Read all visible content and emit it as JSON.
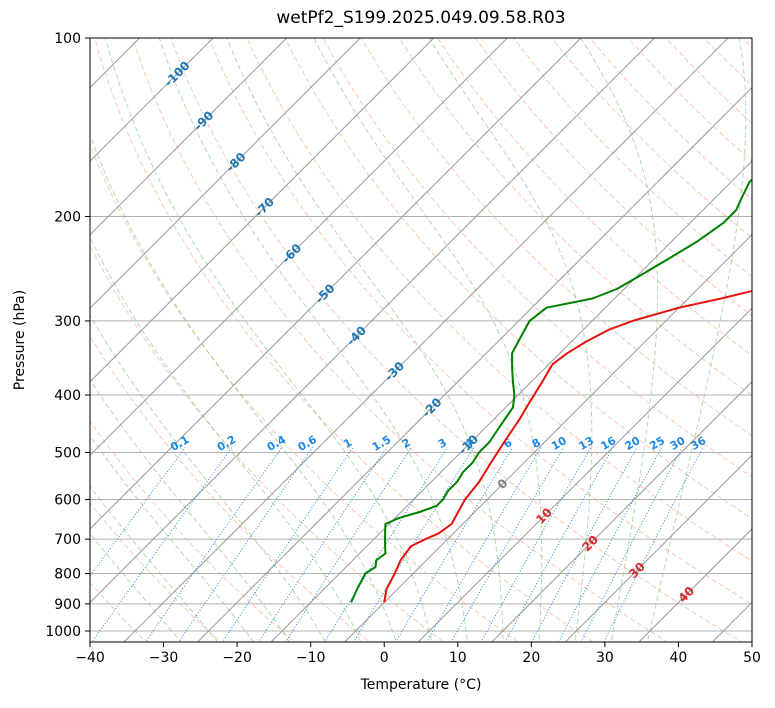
{
  "chart_data": {
    "type": "line",
    "title": "wetPf2_S199.2025.049.09.58.R03",
    "xlabel": "Temperature (°C)",
    "ylabel": "Pressure (hPa)",
    "xlim": [
      -40,
      50
    ],
    "ylim": [
      1050,
      100
    ],
    "y_scale": "log",
    "grid": true,
    "x_ticks": [
      -40,
      -30,
      -20,
      -10,
      0,
      10,
      20,
      30,
      40,
      50
    ],
    "y_ticks": [
      100,
      200,
      300,
      400,
      500,
      600,
      700,
      800,
      900,
      1000
    ],
    "series": [
      {
        "color": "#e8110f",
        "points": [
          [
            0.0,
            895
          ],
          [
            -1.5,
            850
          ],
          [
            -2.5,
            800
          ],
          [
            -3.5,
            760
          ],
          [
            -4.0,
            720
          ],
          [
            -3.0,
            700
          ],
          [
            -2.0,
            685
          ],
          [
            -1.5,
            660
          ],
          [
            -2.0,
            640
          ],
          [
            -2.5,
            620
          ],
          [
            -3.0,
            600
          ],
          [
            -3.5,
            560
          ],
          [
            -4.5,
            520
          ],
          [
            -5.5,
            480
          ],
          [
            -6.5,
            440
          ],
          [
            -7.5,
            410
          ],
          [
            -8.5,
            380
          ],
          [
            -9.5,
            355
          ],
          [
            -9.0,
            340
          ],
          [
            -8.0,
            325
          ],
          [
            -6.5,
            310
          ],
          [
            -4.5,
            300
          ],
          [
            0.0,
            285
          ],
          [
            4.5,
            275
          ],
          [
            8.5,
            265
          ],
          [
            11.5,
            255
          ],
          [
            15.0,
            240
          ],
          [
            18.0,
            225
          ],
          [
            20.5,
            210
          ],
          [
            23.0,
            195
          ],
          [
            24.5,
            185
          ],
          [
            26.0,
            175
          ],
          [
            27.5,
            165
          ],
          [
            29.5,
            155
          ],
          [
            31.0,
            145
          ],
          [
            33.0,
            135
          ],
          [
            35.5,
            125
          ],
          [
            38.5,
            115
          ],
          [
            41.0,
            108
          ],
          [
            43.5,
            100
          ]
        ]
      },
      {
        "color": "#008000",
        "points": [
          [
            -4.5,
            895
          ],
          [
            -5.5,
            850
          ],
          [
            -6.5,
            800
          ],
          [
            -6.0,
            780
          ],
          [
            -6.8,
            760
          ],
          [
            -6.5,
            740
          ],
          [
            -7.5,
            720
          ],
          [
            -8.5,
            700
          ],
          [
            -9.5,
            680
          ],
          [
            -10.5,
            660
          ],
          [
            -9.5,
            645
          ],
          [
            -7.5,
            630
          ],
          [
            -6.0,
            615
          ],
          [
            -6.0,
            600
          ],
          [
            -6.5,
            580
          ],
          [
            -6.5,
            560
          ],
          [
            -7.0,
            540
          ],
          [
            -7.0,
            520
          ],
          [
            -7.5,
            500
          ],
          [
            -7.5,
            480
          ],
          [
            -8.0,
            460
          ],
          [
            -8.5,
            440
          ],
          [
            -9.0,
            420
          ],
          [
            -10.5,
            400
          ],
          [
            -12.5,
            380
          ],
          [
            -14.5,
            360
          ],
          [
            -16.5,
            340
          ],
          [
            -17.5,
            320
          ],
          [
            -18.5,
            300
          ],
          [
            -18.0,
            285
          ],
          [
            -13.0,
            275
          ],
          [
            -11.0,
            265
          ],
          [
            -9.5,
            250
          ],
          [
            -8.0,
            235
          ],
          [
            -6.5,
            220
          ],
          [
            -5.5,
            205
          ],
          [
            -5.5,
            195
          ],
          [
            -6.5,
            185
          ],
          [
            -7.5,
            175
          ],
          [
            -7.5,
            168
          ],
          [
            -8.5,
            160
          ],
          [
            -10.0,
            153
          ],
          [
            -10.5,
            146
          ],
          [
            -9.5,
            138
          ],
          [
            -7.5,
            130
          ],
          [
            -5.5,
            122
          ],
          [
            -3.5,
            115
          ],
          [
            -1.5,
            108
          ],
          [
            1.5,
            100
          ]
        ]
      }
    ],
    "mixing_ratio_labels": [
      "0.1",
      "0.2",
      "0.4",
      "0.6",
      "1",
      "1.5",
      "2",
      "3",
      "4",
      "6",
      "8",
      "10",
      "13",
      "16",
      "20",
      "25",
      "30",
      "36"
    ],
    "isotherm_labels": [
      "-100",
      "-90",
      "-80",
      "-70",
      "-60",
      "-50",
      "-40",
      "-30",
      "-20",
      "-10",
      "0",
      "10",
      "20",
      "30",
      "40"
    ],
    "colors": {
      "temperature": "#e8110f",
      "dewpoint": "#008000",
      "mixing_ratio": "#1e88e5",
      "dry_adiabat": "#f4a582",
      "moist_adiabat": "#7fbf7b",
      "isotherm": "#999999",
      "isotherm_label": "#1f77b4",
      "warm_label": "#d62728",
      "zero_label": "#808080",
      "grid": "#b0b0b0"
    }
  }
}
